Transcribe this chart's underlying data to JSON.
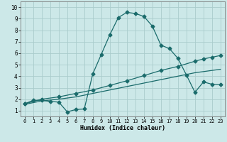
{
  "title": "",
  "xlabel": "Humidex (Indice chaleur)",
  "xlim": [
    -0.5,
    23.5
  ],
  "ylim": [
    0.5,
    10.5
  ],
  "xticks": [
    0,
    1,
    2,
    3,
    4,
    5,
    6,
    7,
    8,
    9,
    10,
    11,
    12,
    13,
    14,
    15,
    16,
    17,
    18,
    19,
    20,
    21,
    22,
    23
  ],
  "yticks": [
    1,
    2,
    3,
    4,
    5,
    6,
    7,
    8,
    9,
    10
  ],
  "bg_color": "#cce8e8",
  "grid_color": "#aacccc",
  "line_color": "#1a6b6b",
  "line1_x": [
    0,
    1,
    2,
    3,
    4,
    5,
    6,
    7,
    8,
    9,
    10,
    11,
    12,
    13,
    14,
    15,
    16,
    17,
    18,
    19,
    20,
    21,
    22,
    23
  ],
  "line1_y": [
    1.6,
    1.9,
    1.9,
    1.8,
    1.75,
    0.9,
    1.1,
    1.15,
    4.2,
    5.9,
    7.6,
    9.1,
    9.55,
    9.45,
    9.2,
    8.35,
    6.7,
    6.4,
    5.55,
    4.1,
    2.6,
    3.5,
    3.3,
    3.25
  ],
  "line2_x": [
    0,
    2,
    4,
    6,
    8,
    10,
    12,
    14,
    16,
    18,
    20,
    21,
    22,
    23
  ],
  "line2_y": [
    1.6,
    2.0,
    2.2,
    2.5,
    2.8,
    3.2,
    3.6,
    4.05,
    4.5,
    4.85,
    5.3,
    5.5,
    5.65,
    5.8
  ],
  "line3_x": [
    0,
    2,
    4,
    6,
    8,
    10,
    12,
    14,
    16,
    18,
    20,
    22,
    23
  ],
  "line3_y": [
    1.55,
    1.85,
    2.0,
    2.2,
    2.5,
    2.8,
    3.1,
    3.4,
    3.7,
    4.0,
    4.3,
    4.5,
    4.6
  ]
}
